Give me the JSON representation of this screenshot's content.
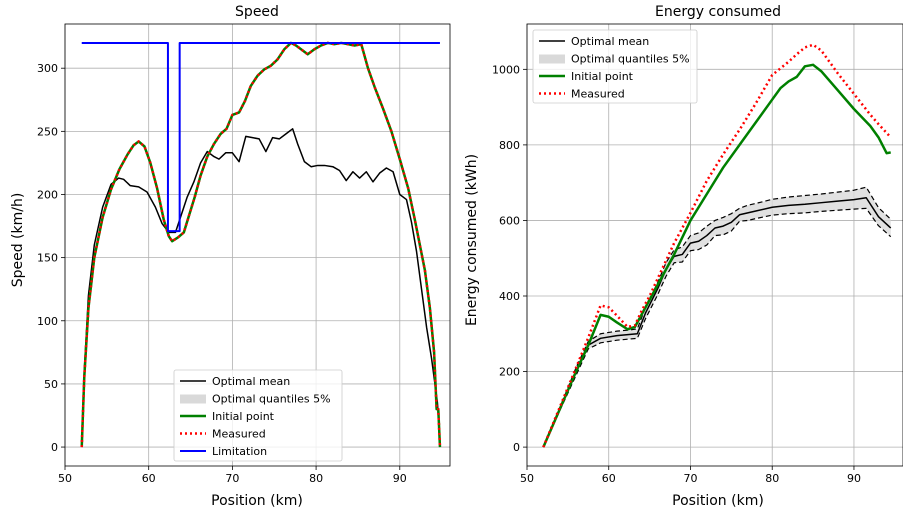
{
  "chart_data": [
    {
      "type": "line",
      "title": "Speed",
      "xlabel": "Position (km)",
      "ylabel": "Speed (km/h)",
      "xlim": [
        50,
        96
      ],
      "ylim": [
        -15,
        335
      ],
      "xticks": [
        50,
        60,
        70,
        80,
        90
      ],
      "yticks": [
        0,
        50,
        100,
        150,
        200,
        250,
        300
      ],
      "grid": true,
      "legend_position": "lower-center",
      "legend": [
        "Optimal mean",
        "Optimal quantiles 5%",
        "Initial point",
        "Measured",
        "Limitation"
      ],
      "series": [
        {
          "name": "Optimal mean",
          "color": "#000000",
          "style": "solid",
          "x": [
            52,
            52.3,
            52.8,
            53.5,
            54.5,
            55.5,
            56.4,
            57.0,
            57.8,
            58.8,
            59.8,
            60.8,
            61.6,
            62.4,
            63.2,
            63.8,
            64.6,
            65.4,
            66.2,
            67.0,
            67.8,
            68.4,
            69.2,
            70.0,
            70.8,
            71.6,
            72.4,
            73.2,
            74.0,
            74.8,
            75.6,
            76.4,
            77.2,
            77.8,
            78.6,
            79.4,
            80.2,
            81.0,
            82.0,
            82.8,
            83.6,
            84.4,
            85.2,
            86.0,
            86.8,
            87.6,
            88.4,
            89.2,
            90.0,
            90.8,
            91.4,
            92.0,
            92.6,
            93.2,
            93.8,
            94.2,
            94.5,
            94.7,
            94.8
          ],
          "values": [
            0,
            60,
            120,
            160,
            190,
            208,
            213,
            212,
            207,
            206,
            202,
            190,
            177,
            170,
            170,
            182,
            198,
            210,
            225,
            234,
            230,
            228,
            233,
            233,
            226,
            246,
            245,
            244,
            234,
            245,
            244,
            248,
            252,
            240,
            226,
            222,
            223,
            223,
            222,
            219,
            211,
            218,
            213,
            218,
            210,
            217,
            221,
            218,
            200,
            196,
            178,
            155,
            125,
            95,
            70,
            50,
            35,
            15,
            0
          ]
        },
        {
          "name": "Initial point",
          "color": "#008000",
          "style": "solid",
          "x": [
            52,
            52.3,
            52.8,
            53.5,
            54.5,
            55.5,
            56.5,
            57.5,
            58.2,
            58.8,
            59.5,
            60.2,
            61.0,
            61.8,
            62.4,
            62.8,
            63.5,
            64.2,
            64.8,
            65.5,
            66.2,
            67.0,
            67.8,
            68.6,
            69.3,
            70.0,
            70.8,
            71.5,
            72.2,
            73.0,
            73.8,
            74.6,
            75.4,
            76.2,
            77.0,
            77.6,
            78.4,
            79.0,
            79.8,
            80.6,
            81.4,
            82.2,
            83.0,
            83.8,
            84.6,
            85.4,
            86.2,
            87.0,
            88.0,
            89.0,
            90.0,
            91.0,
            91.8,
            92.4,
            93.0,
            93.6,
            94.1,
            94.4,
            94.6,
            94.8
          ],
          "values": [
            0,
            55,
            110,
            150,
            182,
            204,
            220,
            232,
            239,
            242,
            238,
            225,
            205,
            180,
            167,
            163,
            166,
            170,
            183,
            198,
            215,
            230,
            240,
            248,
            252,
            263,
            265,
            274,
            286,
            294,
            299,
            302,
            307,
            315,
            320,
            318,
            314,
            311,
            315,
            318,
            320,
            319,
            320,
            319,
            318,
            319,
            300,
            285,
            268,
            250,
            228,
            205,
            180,
            160,
            140,
            110,
            75,
            30,
            30,
            0
          ]
        },
        {
          "name": "Measured",
          "color": "#ff0000",
          "style": "dotted",
          "x": [
            52,
            52.3,
            52.8,
            53.5,
            54.5,
            55.5,
            56.5,
            57.5,
            58.2,
            58.8,
            59.5,
            60.2,
            61.0,
            61.8,
            62.4,
            62.8,
            63.5,
            64.2,
            64.8,
            65.5,
            66.2,
            67.0,
            67.8,
            68.6,
            69.3,
            70.0,
            70.8,
            71.5,
            72.2,
            73.0,
            73.8,
            74.6,
            75.4,
            76.2,
            77.0,
            77.6,
            78.4,
            79.0,
            79.8,
            80.6,
            81.4,
            82.2,
            83.0,
            83.8,
            84.6,
            85.4,
            86.2,
            87.0,
            88.0,
            89.0,
            90.0,
            91.0,
            91.8,
            92.4,
            93.0,
            93.6,
            94.1,
            94.4,
            94.6,
            94.8
          ],
          "values": [
            0,
            55,
            110,
            150,
            182,
            204,
            220,
            232,
            239,
            242,
            238,
            225,
            205,
            180,
            167,
            163,
            166,
            170,
            183,
            198,
            215,
            230,
            240,
            248,
            252,
            263,
            265,
            274,
            286,
            294,
            299,
            302,
            307,
            315,
            320,
            318,
            314,
            311,
            315,
            318,
            320,
            319,
            320,
            319,
            318,
            319,
            300,
            285,
            268,
            250,
            228,
            205,
            180,
            160,
            140,
            110,
            75,
            30,
            30,
            0
          ]
        },
        {
          "name": "Limitation",
          "color": "#0000ff",
          "style": "solid",
          "x": [
            52,
            62.3,
            62.3,
            63.7,
            63.7,
            94.8
          ],
          "values": [
            320,
            320,
            171,
            171,
            320,
            320
          ]
        }
      ]
    },
    {
      "type": "line",
      "title": "Energy consumed",
      "xlabel": "Position (km)",
      "ylabel": "Energy consumed (kWh)",
      "xlim": [
        50,
        96
      ],
      "ylim": [
        -50,
        1120
      ],
      "xticks": [
        50,
        60,
        70,
        80,
        90
      ],
      "yticks": [
        0,
        200,
        400,
        600,
        800,
        1000
      ],
      "grid": true,
      "legend_position": "upper-left",
      "legend": [
        "Optimal mean",
        "Optimal quantiles 5%",
        "Initial point",
        "Measured"
      ],
      "series": [
        {
          "name": "Optimal mean",
          "color": "#000000",
          "style": "solid",
          "x": [
            52,
            54,
            56,
            57.5,
            59,
            61,
            62.5,
            63.5,
            64.5,
            66,
            67,
            68,
            69,
            70,
            71,
            72,
            73,
            74,
            75,
            76,
            77,
            78,
            80,
            82,
            84,
            86,
            88,
            90,
            91.5,
            93,
            94.5
          ],
          "values": [
            0,
            100,
            200,
            270,
            288,
            295,
            298,
            300,
            355,
            420,
            470,
            505,
            510,
            540,
            545,
            560,
            580,
            585,
            595,
            615,
            620,
            625,
            635,
            640,
            643,
            647,
            651,
            655,
            660,
            610,
            580
          ]
        },
        {
          "name": "Optimal quantiles 5% upper",
          "color": "#000000",
          "style": "dashed",
          "x": [
            52,
            54,
            56,
            57.5,
            59,
            61,
            62.5,
            63.5,
            64.5,
            66,
            67,
            68,
            69,
            70,
            71,
            72,
            73,
            74,
            75,
            76,
            77,
            78,
            80,
            82,
            84,
            86,
            88,
            90,
            91.5,
            93,
            94.5
          ],
          "values": [
            0,
            104,
            210,
            280,
            300,
            307,
            310,
            313,
            370,
            436,
            488,
            522,
            530,
            560,
            567,
            585,
            600,
            608,
            618,
            632,
            640,
            645,
            656,
            662,
            666,
            670,
            675,
            680,
            688,
            634,
            603
          ]
        },
        {
          "name": "Optimal quantiles 5% lower",
          "color": "#000000",
          "style": "dashed",
          "x": [
            52,
            54,
            56,
            57.5,
            59,
            61,
            62.5,
            63.5,
            64.5,
            66,
            67,
            68,
            69,
            70,
            71,
            72,
            73,
            74,
            75,
            76,
            77,
            78,
            80,
            82,
            84,
            86,
            88,
            90,
            91.5,
            93,
            94.5
          ],
          "values": [
            0,
            96,
            190,
            260,
            276,
            283,
            286,
            288,
            340,
            404,
            452,
            488,
            490,
            520,
            523,
            535,
            560,
            562,
            572,
            598,
            600,
            605,
            614,
            618,
            620,
            624,
            627,
            630,
            632,
            586,
            557
          ]
        },
        {
          "name": "Initial point",
          "color": "#008000",
          "style": "solid",
          "x": [
            52,
            54,
            56,
            57.5,
            59,
            60,
            61,
            62.3,
            63.2,
            64,
            65,
            66.5,
            68,
            70,
            72,
            74,
            76,
            78,
            80,
            81,
            82,
            83,
            84,
            85,
            86,
            88,
            90,
            92,
            93,
            94,
            94.5
          ],
          "values": [
            0,
            100,
            200,
            270,
            350,
            345,
            330,
            312,
            318,
            350,
            390,
            450,
            510,
            600,
            670,
            740,
            800,
            860,
            920,
            950,
            968,
            980,
            1008,
            1012,
            995,
            945,
            895,
            850,
            820,
            778,
            780
          ]
        },
        {
          "name": "Measured",
          "color": "#ff0000",
          "style": "dotted",
          "x": [
            52,
            54,
            56,
            57.5,
            59,
            60,
            61,
            62.3,
            63.2,
            64,
            65,
            66.5,
            68,
            70,
            72,
            74,
            76,
            78,
            80,
            82,
            83,
            84,
            85,
            86,
            88,
            90,
            92,
            93,
            94.5
          ],
          "values": [
            0,
            105,
            210,
            290,
            375,
            370,
            348,
            318,
            322,
            360,
            400,
            470,
            540,
            620,
            705,
            775,
            840,
            910,
            985,
            1020,
            1040,
            1058,
            1065,
            1050,
            990,
            935,
            880,
            855,
            820
          ]
        }
      ]
    }
  ]
}
